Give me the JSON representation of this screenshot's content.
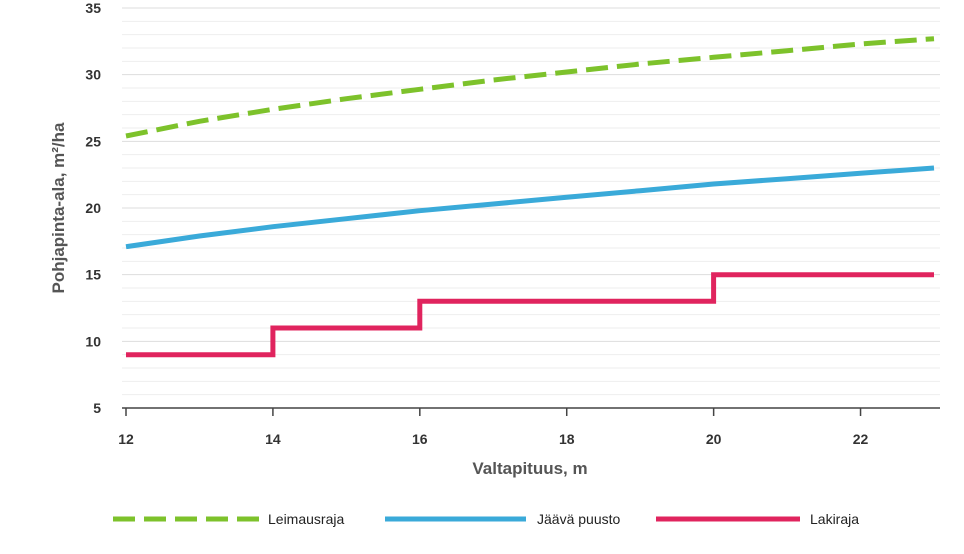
{
  "chart_data": {
    "type": "line",
    "xlabel": "Valtapituus, m",
    "ylabel": "Pohjapinta-ala, m²/ha",
    "xlim": [
      12,
      23
    ],
    "ylim": [
      5,
      35
    ],
    "xticks": [
      12,
      14,
      16,
      18,
      20,
      22
    ],
    "yticks": [
      5,
      10,
      15,
      20,
      25,
      30,
      35
    ],
    "grid": true,
    "legend_position": "bottom",
    "series": [
      {
        "name": "Leimausraja",
        "style": "dashed",
        "color": "#7dc22b",
        "x": [
          12,
          13,
          14,
          15,
          16,
          17,
          18,
          19,
          20,
          21,
          22,
          23
        ],
        "y": [
          25.4,
          26.5,
          27.4,
          28.2,
          28.9,
          29.6,
          30.2,
          30.8,
          31.3,
          31.8,
          32.3,
          32.7
        ]
      },
      {
        "name": "Jäävä puusto",
        "style": "solid",
        "color": "#3aaad9",
        "x": [
          12,
          13,
          14,
          15,
          16,
          17,
          18,
          19,
          20,
          21,
          22,
          23
        ],
        "y": [
          17.1,
          17.9,
          18.6,
          19.2,
          19.8,
          20.3,
          20.8,
          21.3,
          21.8,
          22.2,
          22.6,
          23.0
        ]
      },
      {
        "name": "Lakiraja",
        "style": "step",
        "color": "#e0245e",
        "x": [
          12,
          14,
          14,
          16,
          16,
          20,
          20,
          23
        ],
        "y": [
          9,
          9,
          11,
          11,
          13,
          13,
          15,
          15
        ]
      }
    ]
  }
}
